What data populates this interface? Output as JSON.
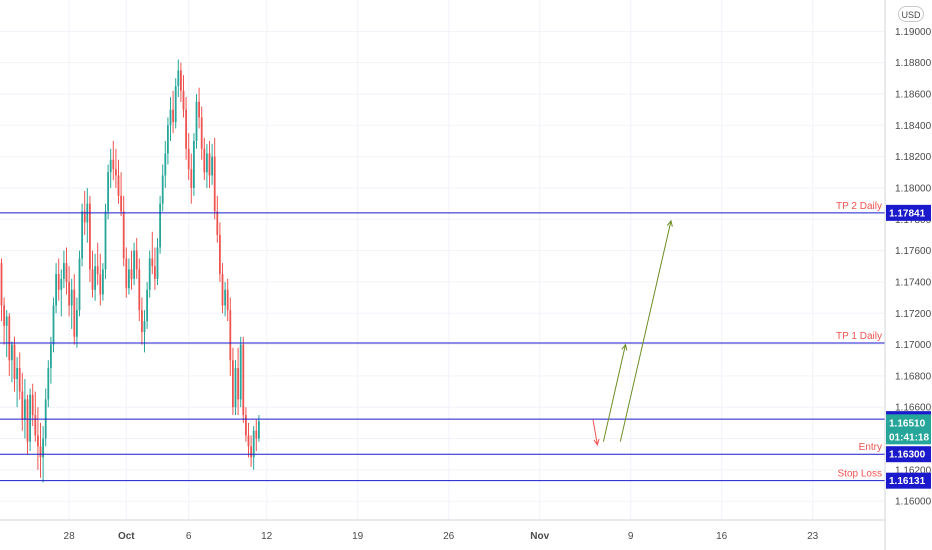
{
  "currency_button": "USD",
  "chart_data": {
    "type": "candlestick",
    "title": "",
    "xlabel": "",
    "ylabel": "",
    "ylim": [
      1.1588,
      1.192
    ],
    "grid": true,
    "y_ticks": [
      "1.16000",
      "1.16200",
      "1.16400",
      "1.16600",
      "1.16800",
      "1.17000",
      "1.17200",
      "1.17400",
      "1.17600",
      "1.17800",
      "1.18000",
      "1.18200",
      "1.18400",
      "1.18600",
      "1.18800",
      "1.19000"
    ],
    "x_ticks": [
      {
        "label": "28",
        "bar": 26
      },
      {
        "label": "Oct",
        "bar": 48
      },
      {
        "label": "6",
        "bar": 72
      },
      {
        "label": "12",
        "bar": 102
      },
      {
        "label": "19",
        "bar": 137
      },
      {
        "label": "26",
        "bar": 172
      },
      {
        "label": "Nov",
        "bar": 207
      },
      {
        "label": "9",
        "bar": 242
      },
      {
        "label": "16",
        "bar": 277
      },
      {
        "label": "23",
        "bar": 312
      }
    ],
    "candles": [
      [
        1.1752,
        1.1755,
        1.1715,
        1.1725
      ],
      [
        1.1725,
        1.173,
        1.17,
        1.1712
      ],
      [
        1.1712,
        1.1722,
        1.1692,
        1.1718
      ],
      [
        1.1718,
        1.172,
        1.168,
        1.169
      ],
      [
        1.169,
        1.1702,
        1.1676,
        1.17
      ],
      [
        1.17,
        1.1705,
        1.167,
        1.1678
      ],
      [
        1.1678,
        1.1692,
        1.166,
        1.1685
      ],
      [
        1.1685,
        1.1695,
        1.1665,
        1.167
      ],
      [
        1.167,
        1.1682,
        1.1645,
        1.1652
      ],
      [
        1.1652,
        1.1678,
        1.164,
        1.1665
      ],
      [
        1.1665,
        1.1668,
        1.163,
        1.1638
      ],
      [
        1.1638,
        1.1672,
        1.1632,
        1.1668
      ],
      [
        1.1668,
        1.1675,
        1.1648,
        1.1655
      ],
      [
        1.1655,
        1.167,
        1.1638,
        1.1642
      ],
      [
        1.1642,
        1.166,
        1.162,
        1.1635
      ],
      [
        1.1635,
        1.165,
        1.1615,
        1.1628
      ],
      [
        1.1628,
        1.1648,
        1.1612,
        1.164
      ],
      [
        1.164,
        1.1672,
        1.1635,
        1.1665
      ],
      [
        1.1665,
        1.169,
        1.166,
        1.1685
      ],
      [
        1.1685,
        1.1705,
        1.1675,
        1.17
      ],
      [
        1.17,
        1.173,
        1.1695,
        1.1725
      ],
      [
        1.1725,
        1.1752,
        1.172,
        1.1745
      ],
      [
        1.1745,
        1.1755,
        1.1728,
        1.1735
      ],
      [
        1.1735,
        1.1748,
        1.1718,
        1.1742
      ],
      [
        1.1742,
        1.176,
        1.1736,
        1.1752
      ],
      [
        1.1752,
        1.1762,
        1.1732,
        1.174
      ],
      [
        1.174,
        1.175,
        1.1718,
        1.1725
      ],
      [
        1.1725,
        1.1742,
        1.171,
        1.1735
      ],
      [
        1.1735,
        1.1745,
        1.17,
        1.1705
      ],
      [
        1.1705,
        1.173,
        1.1698,
        1.1722
      ],
      [
        1.1722,
        1.176,
        1.1718,
        1.1755
      ],
      [
        1.1755,
        1.179,
        1.175,
        1.1785
      ],
      [
        1.1785,
        1.1798,
        1.177,
        1.1778
      ],
      [
        1.1778,
        1.18,
        1.1765,
        1.179
      ],
      [
        1.179,
        1.1795,
        1.174,
        1.1748
      ],
      [
        1.1748,
        1.176,
        1.173,
        1.1735
      ],
      [
        1.1735,
        1.1758,
        1.1728,
        1.175
      ],
      [
        1.175,
        1.1765,
        1.1738,
        1.1745
      ],
      [
        1.1745,
        1.1758,
        1.1725,
        1.1732
      ],
      [
        1.1732,
        1.1752,
        1.1728,
        1.1748
      ],
      [
        1.1748,
        1.179,
        1.1742,
        1.1785
      ],
      [
        1.1785,
        1.1815,
        1.178,
        1.181
      ],
      [
        1.181,
        1.1825,
        1.18,
        1.1818
      ],
      [
        1.1818,
        1.183,
        1.1805,
        1.1812
      ],
      [
        1.1812,
        1.1825,
        1.18,
        1.1808
      ],
      [
        1.1808,
        1.1818,
        1.179,
        1.1795
      ],
      [
        1.1795,
        1.181,
        1.1782,
        1.1785
      ],
      [
        1.1785,
        1.1795,
        1.175,
        1.1755
      ],
      [
        1.1755,
        1.1762,
        1.173,
        1.1736
      ],
      [
        1.1736,
        1.1755,
        1.1732,
        1.1748
      ],
      [
        1.1748,
        1.176,
        1.1735,
        1.1742
      ],
      [
        1.1742,
        1.1765,
        1.1738,
        1.176
      ],
      [
        1.176,
        1.1768,
        1.1742,
        1.1748
      ],
      [
        1.1748,
        1.1755,
        1.1715,
        1.1722
      ],
      [
        1.1722,
        1.173,
        1.17,
        1.1708
      ],
      [
        1.1708,
        1.1722,
        1.1695,
        1.1715
      ],
      [
        1.1715,
        1.174,
        1.171,
        1.1735
      ],
      [
        1.1735,
        1.176,
        1.173,
        1.1755
      ],
      [
        1.1755,
        1.1772,
        1.1745,
        1.175
      ],
      [
        1.175,
        1.1762,
        1.1735,
        1.1742
      ],
      [
        1.1742,
        1.1768,
        1.1738,
        1.1762
      ],
      [
        1.1762,
        1.1795,
        1.1758,
        1.179
      ],
      [
        1.179,
        1.1815,
        1.1785,
        1.1808
      ],
      [
        1.1808,
        1.183,
        1.18,
        1.1822
      ],
      [
        1.1822,
        1.1845,
        1.1815,
        1.184
      ],
      [
        1.184,
        1.1858,
        1.183,
        1.185
      ],
      [
        1.185,
        1.1862,
        1.1835,
        1.1842
      ],
      [
        1.1842,
        1.187,
        1.1838,
        1.1865
      ],
      [
        1.1865,
        1.1882,
        1.1858,
        1.1875
      ],
      [
        1.1875,
        1.188,
        1.1855,
        1.1862
      ],
      [
        1.1862,
        1.1872,
        1.1845,
        1.185
      ],
      [
        1.185,
        1.1858,
        1.1818,
        1.1825
      ],
      [
        1.1825,
        1.1835,
        1.1805,
        1.1812
      ],
      [
        1.1812,
        1.1822,
        1.179,
        1.18
      ],
      [
        1.18,
        1.1835,
        1.1795,
        1.183
      ],
      [
        1.183,
        1.186,
        1.1825,
        1.1855
      ],
      [
        1.1855,
        1.1864,
        1.1838,
        1.1845
      ],
      [
        1.1845,
        1.1852,
        1.1818,
        1.1825
      ],
      [
        1.1825,
        1.1832,
        1.1805,
        1.181
      ],
      [
        1.181,
        1.1828,
        1.18,
        1.1822
      ],
      [
        1.1822,
        1.183,
        1.18,
        1.1808
      ],
      [
        1.1808,
        1.1828,
        1.1802,
        1.182
      ],
      [
        1.182,
        1.1832,
        1.178,
        1.1785
      ],
      [
        1.1785,
        1.1795,
        1.1765,
        1.177
      ],
      [
        1.177,
        1.1778,
        1.174,
        1.1745
      ],
      [
        1.1745,
        1.1752,
        1.172,
        1.1725
      ],
      [
        1.1725,
        1.174,
        1.1718,
        1.1735
      ],
      [
        1.1735,
        1.1742,
        1.1715,
        1.1722
      ],
      [
        1.1722,
        1.173,
        1.168,
        1.169
      ],
      [
        1.169,
        1.1698,
        1.1655,
        1.166
      ],
      [
        1.166,
        1.169,
        1.1655,
        1.1685
      ],
      [
        1.1685,
        1.1698,
        1.1655,
        1.1665
      ],
      [
        1.1665,
        1.1705,
        1.166,
        1.17
      ],
      [
        1.17,
        1.1705,
        1.165,
        1.1655
      ],
      [
        1.1655,
        1.166,
        1.1638,
        1.1642
      ],
      [
        1.1642,
        1.165,
        1.1628,
        1.1635
      ],
      [
        1.1635,
        1.1642,
        1.1622,
        1.1628
      ],
      [
        1.1628,
        1.1648,
        1.162,
        1.1645
      ],
      [
        1.1645,
        1.1652,
        1.1632,
        1.164
      ],
      [
        1.164,
        1.1655,
        1.1638,
        1.1651
      ]
    ]
  },
  "levels": [
    {
      "price": 1.17841,
      "label": "TP 2 Daily",
      "badge": "1.17841",
      "badge_color": "#1a1acc"
    },
    {
      "price": 1.1701,
      "label": "TP 1 Daily",
      "badge": "",
      "badge_color": "#1a1acc"
    },
    {
      "price": 1.16524,
      "label": "",
      "badge": "1.16524",
      "badge_color": "#1a1acc"
    },
    {
      "price": 1.163,
      "label": "Entry",
      "badge": "1.16300",
      "badge_color": "#1a1acc"
    },
    {
      "price": 1.16131,
      "label": "Stop Loss",
      "badge": "1.16131",
      "badge_color": "#1a1acc"
    }
  ],
  "current_price": {
    "price": 1.1651,
    "badge": "1.16510",
    "countdown": "01:41:18",
    "color": "#26a69a"
  },
  "colors": {
    "up": "#26a69a",
    "down": "#ef5350",
    "level_line": "#1a1acc",
    "level_label": "#ef5350",
    "arrow_up": "#6b8e23",
    "arrow_down": "#ef5350"
  }
}
